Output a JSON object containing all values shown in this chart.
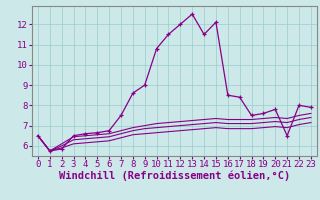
{
  "title": "",
  "xlabel": "Windchill (Refroidissement éolien,°C)",
  "ylabel": "",
  "bg_color": "#cce8e8",
  "line_color": "#880088",
  "xlim": [
    -0.5,
    23.5
  ],
  "ylim": [
    5.5,
    12.9
  ],
  "yticks": [
    6,
    7,
    8,
    9,
    10,
    11,
    12
  ],
  "xticks": [
    0,
    1,
    2,
    3,
    4,
    5,
    6,
    7,
    8,
    9,
    10,
    11,
    12,
    13,
    14,
    15,
    16,
    17,
    18,
    19,
    20,
    21,
    22,
    23
  ],
  "hours": [
    0,
    1,
    2,
    3,
    4,
    5,
    6,
    7,
    8,
    9,
    10,
    11,
    12,
    13,
    14,
    15,
    16,
    17,
    18,
    19,
    20,
    21,
    22,
    23
  ],
  "windchill": [
    6.5,
    5.75,
    5.85,
    6.5,
    6.6,
    6.65,
    6.75,
    7.5,
    8.6,
    9.0,
    10.8,
    11.5,
    12.0,
    12.5,
    11.5,
    12.1,
    8.5,
    8.4,
    7.5,
    7.6,
    7.8,
    6.5,
    8.0,
    7.9
  ],
  "line1": [
    6.5,
    5.75,
    6.1,
    6.45,
    6.5,
    6.55,
    6.6,
    6.75,
    6.9,
    7.0,
    7.1,
    7.15,
    7.2,
    7.25,
    7.3,
    7.35,
    7.3,
    7.3,
    7.3,
    7.35,
    7.4,
    7.35,
    7.5,
    7.6
  ],
  "line2": [
    6.5,
    5.75,
    6.0,
    6.3,
    6.35,
    6.4,
    6.45,
    6.6,
    6.75,
    6.85,
    6.9,
    6.95,
    7.0,
    7.05,
    7.1,
    7.15,
    7.1,
    7.1,
    7.1,
    7.15,
    7.2,
    7.15,
    7.3,
    7.4
  ],
  "line3": [
    6.5,
    5.75,
    5.9,
    6.1,
    6.15,
    6.2,
    6.25,
    6.4,
    6.55,
    6.6,
    6.65,
    6.7,
    6.75,
    6.8,
    6.85,
    6.9,
    6.85,
    6.85,
    6.85,
    6.9,
    6.95,
    6.9,
    7.05,
    7.15
  ],
  "grid_color": "#99cccc",
  "tick_fontsize": 6.5,
  "label_fontsize": 7.5
}
